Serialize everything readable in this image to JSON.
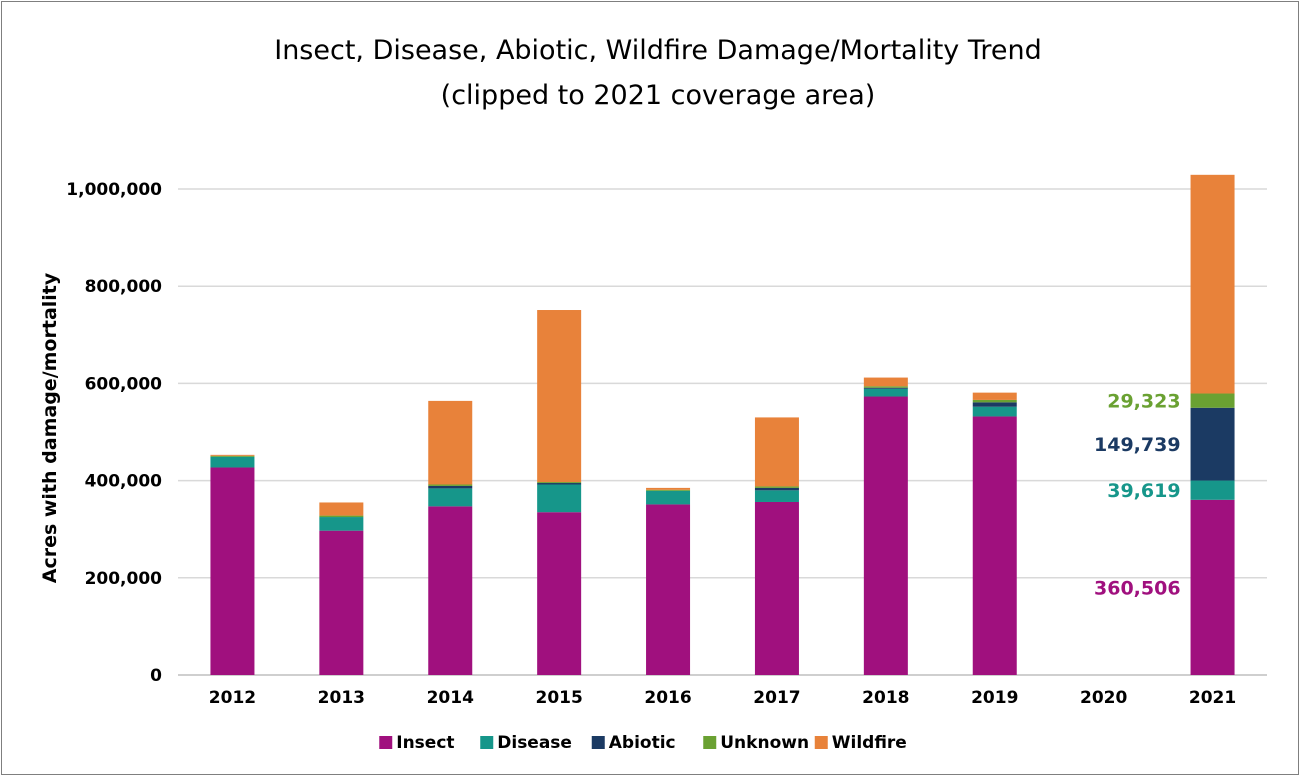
{
  "chart_data": {
    "type": "bar",
    "stacked": true,
    "title_line1": "Insect, Disease, Abiotic, Wildfire Damage/Mortality Trend",
    "title_line2": "(clipped to 2021 coverage area)",
    "xlabel": "",
    "ylabel": "Acres with damage/mortality",
    "ylim": [
      0,
      1000000
    ],
    "yticks": [
      0,
      200000,
      400000,
      600000,
      800000,
      1000000
    ],
    "ytick_labels": [
      "0",
      "200,000",
      "400,000",
      "600,000",
      "800,000",
      "1,000,000"
    ],
    "grid": true,
    "legend_position": "bottom",
    "categories": [
      "2012",
      "2013",
      "2014",
      "2015",
      "2016",
      "2017",
      "2018",
      "2019",
      "2020",
      "2021"
    ],
    "series": [
      {
        "name": "Insect",
        "color": "#a0107e",
        "values": [
          427000,
          297000,
          347000,
          335000,
          351000,
          356000,
          573000,
          532000,
          0,
          360506
        ]
      },
      {
        "name": "Disease",
        "color": "#16968a",
        "values": [
          22000,
          28000,
          37000,
          57000,
          28000,
          24000,
          16000,
          20000,
          0,
          39619
        ]
      },
      {
        "name": "Abiotic",
        "color": "#1b3a63",
        "values": [
          0,
          0,
          5000,
          3000,
          0,
          5000,
          2000,
          9000,
          0,
          149739
        ]
      },
      {
        "name": "Unknown",
        "color": "#6aa132",
        "values": [
          2000,
          3000,
          3000,
          2000,
          2000,
          3000,
          3000,
          5000,
          0,
          29323
        ]
      },
      {
        "name": "Wildfire",
        "color": "#e8823a",
        "values": [
          2000,
          27000,
          172000,
          354000,
          4000,
          142000,
          18000,
          15000,
          0,
          450000
        ]
      }
    ],
    "data_labels": [
      {
        "text": "29,323",
        "series": "Unknown",
        "category": "2021",
        "color": "#6aa132"
      },
      {
        "text": "149,739",
        "series": "Abiotic",
        "category": "2021",
        "color": "#1b3a63"
      },
      {
        "text": "39,619",
        "series": "Disease",
        "category": "2021",
        "color": "#16968a"
      },
      {
        "text": "360,506",
        "series": "Insect",
        "category": "2021",
        "color": "#a0107e"
      }
    ]
  }
}
